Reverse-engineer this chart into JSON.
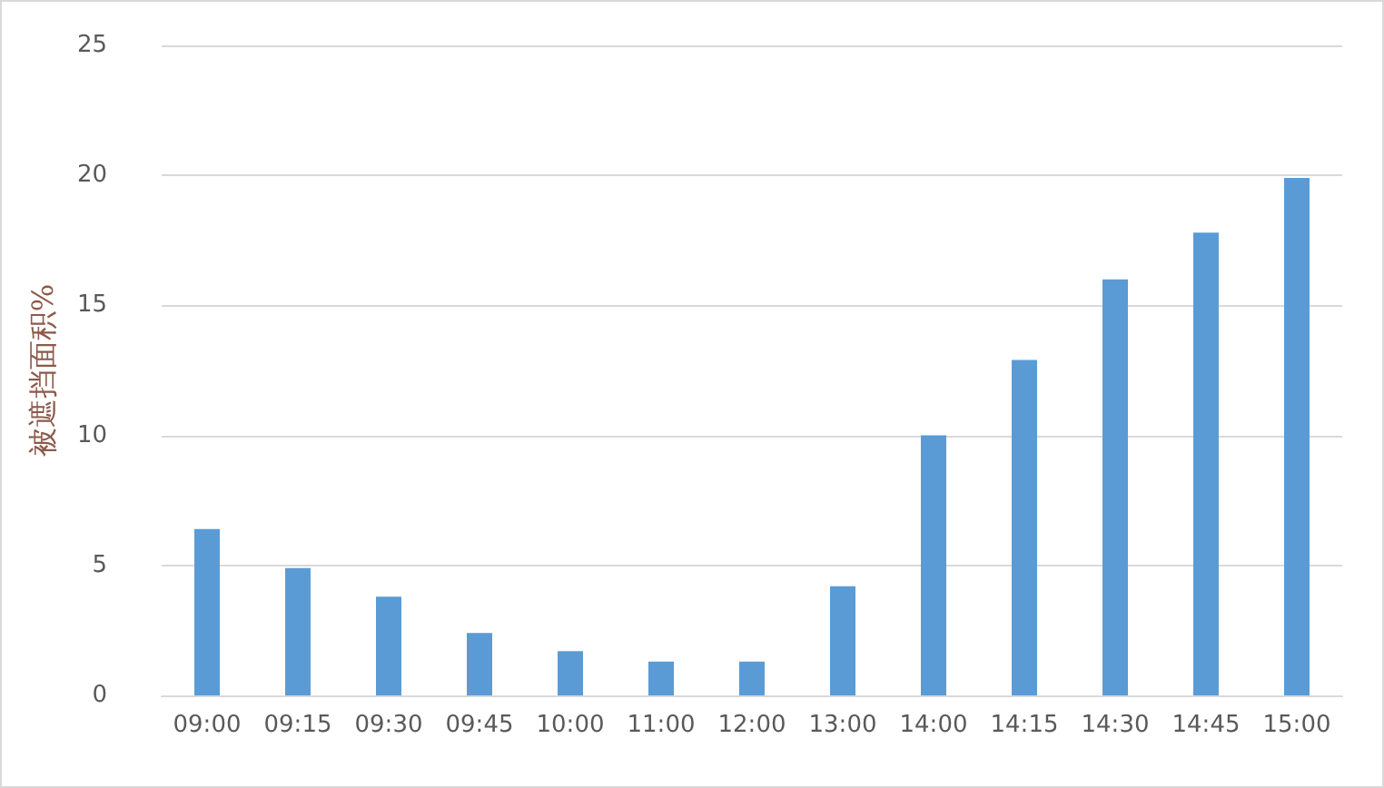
{
  "chart_data": {
    "type": "bar",
    "ylabel": "被遮挡面积%",
    "categories": [
      "09:00",
      "09:15",
      "09:30",
      "09:45",
      "10:00",
      "11:00",
      "12:00",
      "13:00",
      "14:00",
      "14:15",
      "14:30",
      "14:45",
      "15:00"
    ],
    "values": [
      6.4,
      4.9,
      3.8,
      2.4,
      1.7,
      1.3,
      1.3,
      4.2,
      10.0,
      12.9,
      16.0,
      17.8,
      19.9
    ],
    "color": "#5b9bd5",
    "ylim": [
      0,
      25
    ],
    "yticks": [
      0,
      5,
      10,
      15,
      20,
      25
    ],
    "grid": "y"
  }
}
